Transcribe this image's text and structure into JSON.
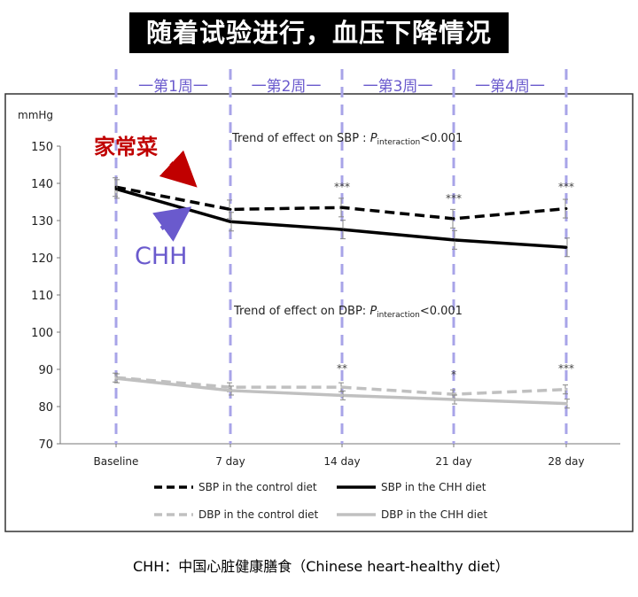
{
  "page": {
    "title": "随着试验进行，血压下降情况",
    "footnote": "CHH：中国心脏健康膳食（Chinese heart-healthy diet）",
    "week_labels": [
      "一第1周一",
      "一第2周一",
      "一第3周一",
      "一第4周一"
    ],
    "annotation_home_cooking": "家常菜",
    "annotation_chh": "CHH"
  },
  "chart_data": {
    "type": "line",
    "ylabel": "mmHg",
    "ylim": [
      70,
      150
    ],
    "yticks": [
      70,
      80,
      90,
      100,
      110,
      120,
      130,
      140,
      150
    ],
    "categories": [
      "Baseline",
      "7 day",
      "14 day",
      "21 day",
      "28 day"
    ],
    "grid": false,
    "legend_position": "bottom",
    "trend_sbp": {
      "prefix": "Trend of effect on SBP : ",
      "p": "P",
      "sub": "interaction",
      "suffix": "<0.001"
    },
    "trend_dbp": {
      "prefix": "Trend of effect on DBP: ",
      "p": "P",
      "sub": "interaction",
      "suffix": "<0.001"
    },
    "series": [
      {
        "name": "SBP in the control diet",
        "values": [
          139,
          133,
          133.5,
          130.5,
          133.2
        ],
        "color": "#000000",
        "dashed": true,
        "errors": [
          2.5,
          2.5,
          2.5,
          2.5,
          2.5
        ]
      },
      {
        "name": "SBP in the CHH diet",
        "values": [
          138.5,
          129.7,
          127.6,
          124.8,
          122.8
        ],
        "color": "#000000",
        "dashed": false,
        "errors": [
          2.5,
          2.5,
          2.5,
          2.5,
          2.5
        ]
      },
      {
        "name": "DBP in the control diet",
        "values": [
          87.8,
          85.2,
          85.2,
          83.3,
          84.6
        ],
        "color": "#c0c0c0",
        "dashed": true,
        "errors": [
          1.2,
          1.2,
          1.2,
          1.2,
          1.2
        ]
      },
      {
        "name": "DBP in the CHH diet",
        "values": [
          87.6,
          84.3,
          83,
          81.9,
          80.8
        ],
        "color": "#c0c0c0",
        "dashed": false,
        "errors": [
          1.2,
          1.2,
          1.2,
          1.2,
          1.2
        ]
      }
    ],
    "significance_sbp": [
      "",
      "",
      "***",
      "***",
      "***"
    ],
    "significance_dbp": [
      "",
      "",
      "**",
      "*",
      "***"
    ]
  }
}
